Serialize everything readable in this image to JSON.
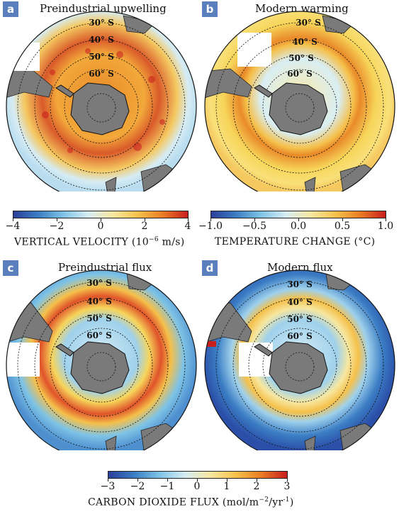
{
  "panels": [
    {
      "letter": "a",
      "title": "Preindustrial upwelling"
    },
    {
      "letter": "b",
      "title": "Modern warming"
    },
    {
      "letter": "c",
      "title": "Preindustrial flux"
    },
    {
      "letter": "d",
      "title": "Modern flux"
    }
  ],
  "latitude_labels": [
    "30° S",
    "40° S",
    "50° S",
    "60° S"
  ],
  "colorbars": {
    "velocity": {
      "ticks": [
        "−4",
        "−2",
        "0",
        "2",
        "4"
      ],
      "label_prefix": "VERTICAL VELOCITY (10",
      "label_sup": "−6",
      "label_suffix": " m/s)"
    },
    "temperature": {
      "ticks": [
        "−1.0",
        "−0.5",
        "0.0",
        "0.5",
        "1.0"
      ],
      "label": "TEMPERATURE CHANGE (°C)"
    },
    "flux": {
      "ticks": [
        "−3",
        "−2",
        "−1",
        "0",
        "1",
        "2",
        "3"
      ],
      "label_prefix": "CARBON DIOXIDE FLUX (mol/m",
      "label_sup1": "−2",
      "label_mid": "/yr",
      "label_sup2": "-1",
      "label_suffix": ")"
    }
  },
  "colors": {
    "deep_blue": "#2b3f99",
    "light_blue": "#c9e6f5",
    "white": "#f7f7f7",
    "yellow": "#f7d55a",
    "orange": "#e98a2a",
    "red": "#c81e1e",
    "land": "#7a7a7a"
  }
}
